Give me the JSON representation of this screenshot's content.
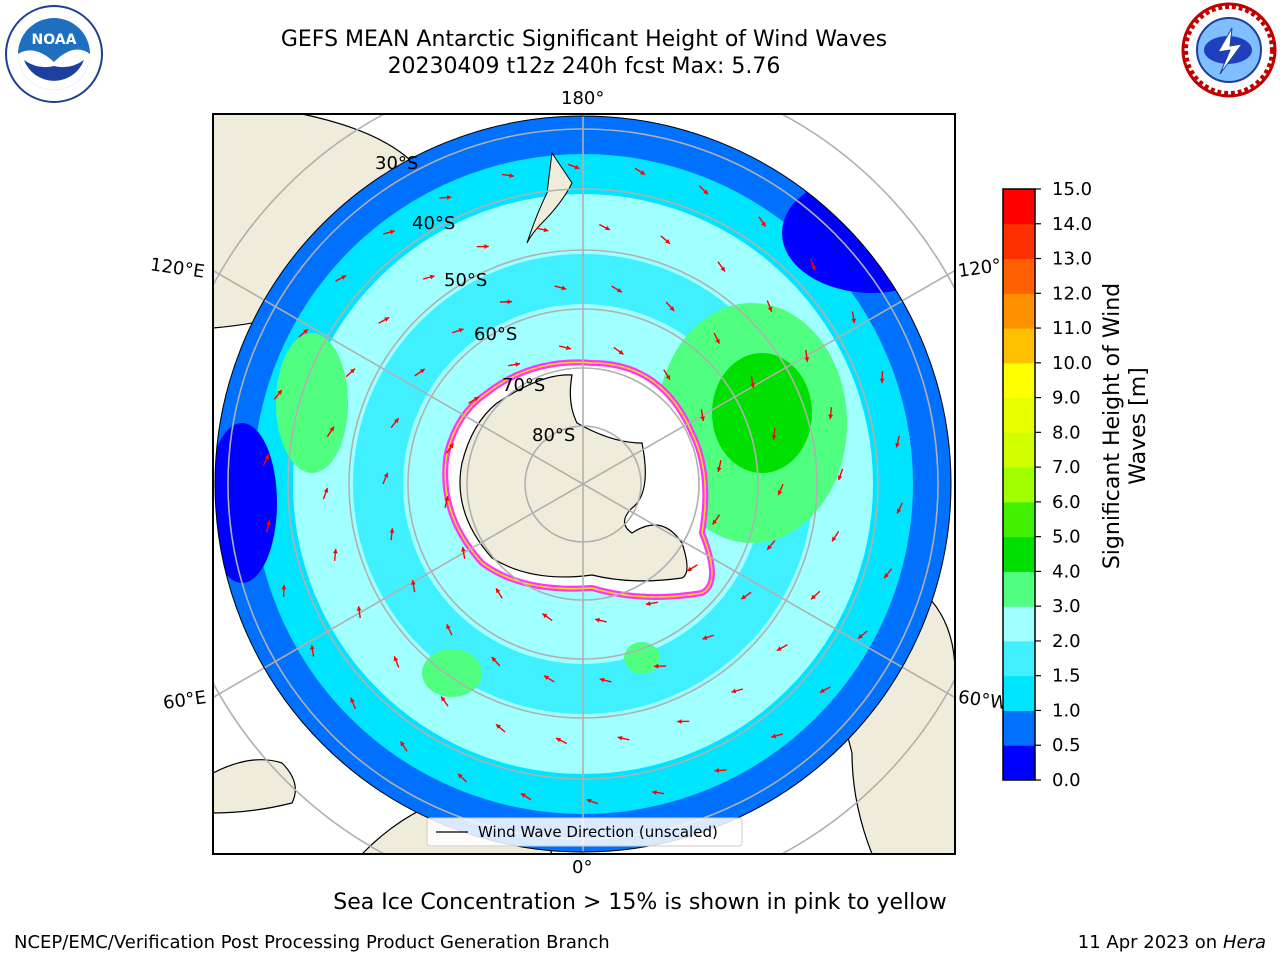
{
  "title_line1": "GEFS MEAN Antarctic Significant Height of Wind Waves",
  "title_line2": "20230409 t12z 240h fcst   Max: 5.76",
  "logos": {
    "left": "NOAA",
    "right": "National Weather Service",
    "left_icon": "noaa-logo-icon",
    "right_icon": "nws-logo-icon"
  },
  "map_labels": {
    "lon_top": "180°",
    "lon_bottom": "0°",
    "lon_left_upper": "120°E",
    "lon_left_lower": "60°E",
    "lon_right_upper": "120°",
    "lon_right_lower": "60°W",
    "lat_30": "30°S",
    "lat_40": "40°S",
    "lat_50": "50°S",
    "lat_60": "60°S",
    "lat_70": "70°S",
    "lat_80": "80°S"
  },
  "legend_label": "Wind Wave Direction (unscaled)",
  "colorbar": {
    "title_line1": "Significant Height of Wind",
    "title_line2": "Waves [m]",
    "ticks": [
      "0.0",
      "0.5",
      "1.0",
      "1.5",
      "2.0",
      "3.0",
      "4.0",
      "5.0",
      "6.0",
      "7.0",
      "8.0",
      "9.0",
      "10.0",
      "11.0",
      "12.0",
      "13.0",
      "14.0",
      "15.0"
    ],
    "colors": [
      "#0000ff",
      "#0070ff",
      "#00e5ff",
      "#40f0ff",
      "#a0ffff",
      "#50ff80",
      "#00e000",
      "#40f000",
      "#a0ff00",
      "#d0ff00",
      "#e8ff00",
      "#ffff00",
      "#ffc000",
      "#ff9000",
      "#ff6000",
      "#ff3000",
      "#ff0000"
    ]
  },
  "footer_note": "Sea Ice Concentration > 15% is shown in pink to yellow",
  "footer_left": "NCEP/EMC/Verification Post Processing Product Generation Branch",
  "footer_right_date": "11 Apr 2023 on",
  "footer_right_machine": "Hera"
}
